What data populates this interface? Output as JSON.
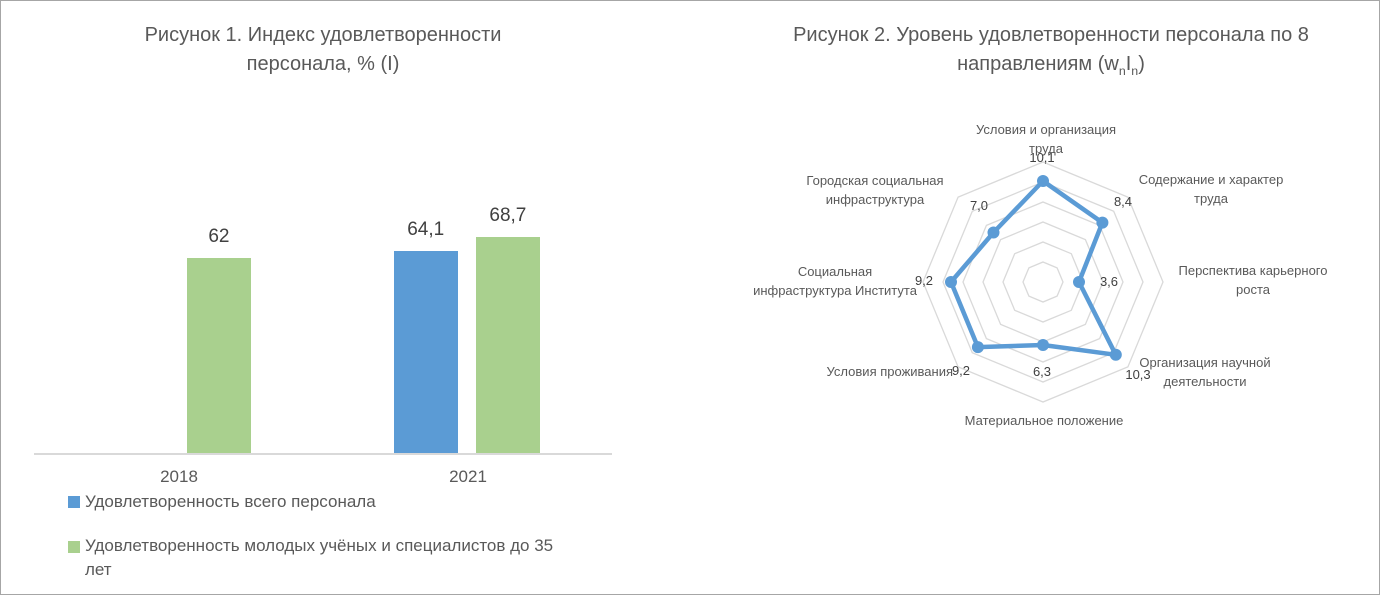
{
  "page": {
    "background": "#FFFFFF",
    "border_color": "#A6A6A6"
  },
  "colors": {
    "title_text": "#595959",
    "data_label_text": "#404040",
    "axis_label_text": "#595959",
    "axis_line": "#D9D9D9",
    "radar_grid": "#D9D9D9",
    "series_blue": "#5B9BD5",
    "series_green": "#A9D08E"
  },
  "chart_data": [
    {
      "type": "bar",
      "title": "Рисунок 1. Индекс удовлетворенности персонала, % (I)",
      "title_lines": [
        "Рисунок 1. Индекс удовлетворенности",
        "персонала, % (I)"
      ],
      "categories": [
        "2018",
        "2021"
      ],
      "series": [
        {
          "name": "Удовлетворенность всего персонала",
          "color": "#5B9BD5",
          "values": [
            null,
            64.1
          ],
          "data_labels": [
            "",
            "64,1"
          ]
        },
        {
          "name": "Удовлетворенность молодых учёных и специалистов до 35 лет",
          "color": "#A9D08E",
          "values": [
            62,
            68.7
          ],
          "data_labels": [
            "62",
            "68,7"
          ]
        }
      ],
      "value_axis_visible": false,
      "gridlines": false,
      "legend_position": "bottom-left",
      "legend": [
        {
          "label": "Удовлетворенность всего персонала",
          "lines": [
            "Удовлетворенность всего персонала"
          ],
          "color": "#5B9BD5"
        },
        {
          "label": "Удовлетворенность молодых учёных и специалистов до 35 лет",
          "lines": [
            "Удовлетворенность молодых учёных и специалистов до 35",
            "лет"
          ],
          "color": "#A9D08E"
        }
      ]
    },
    {
      "type": "radar",
      "title": "Рисунок 2. Уровень удовлетворенности персонала по 8 направлениям (wnIn)",
      "title_lines": [
        "Рисунок 2. Уровень удовлетворенности персонала по 8"
      ],
      "title_line2": {
        "pre": "направлениям (w",
        "sub1": "n",
        "mid": "I",
        "sub2": "n",
        "post": ")"
      },
      "categories": [
        "Условия и организация труда",
        "Содержание и характер труда",
        "Перспектива карьерного роста",
        "Организация научной деятельности",
        "Материальное положение",
        "Условия проживания",
        "Социальная инфраструктура Института",
        "Городская социальная инфраструктура"
      ],
      "category_lines": [
        [
          "Условия и организация",
          "труда"
        ],
        [
          "Содержание и характер",
          "труда"
        ],
        [
          "Перспектива карьерного",
          "роста"
        ],
        [
          "Организация научной",
          "деятельности"
        ],
        [
          "Материальное положение"
        ],
        [
          "Условия проживания"
        ],
        [
          "Социальная",
          "инфраструктура Института"
        ],
        [
          "Городская социальная",
          "инфраструктура"
        ]
      ],
      "values": [
        10.1,
        8.4,
        3.6,
        10.3,
        6.3,
        9.2,
        9.2,
        7.0
      ],
      "data_labels": [
        "10,1",
        "8,4",
        "3,6",
        "10,3",
        "6,3",
        "9,2",
        "9,2",
        "7,0"
      ],
      "rmax": 12,
      "ring_step": 2,
      "rings": 6,
      "grid": true,
      "legend_position": "none",
      "line_color": "#5B9BD5",
      "grid_color": "#D9D9D9"
    }
  ]
}
